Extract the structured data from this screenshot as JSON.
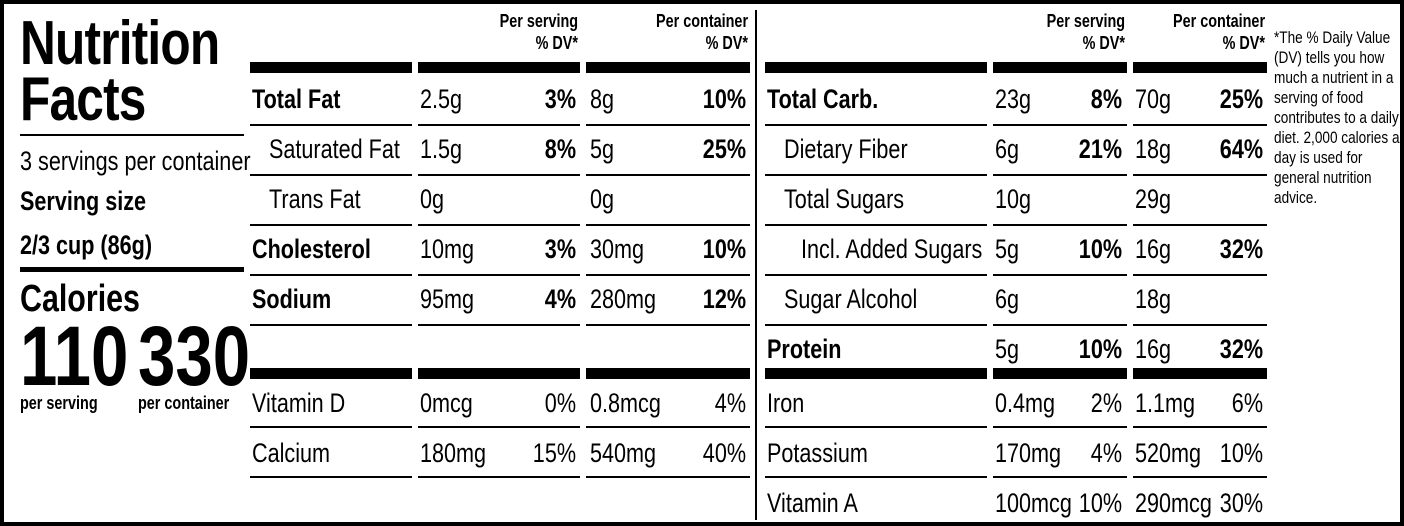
{
  "title": "Nutrition Facts",
  "servings_per_container": "3 servings per container",
  "serving_size_label": "Serving size",
  "serving_size": "2/3 cup (86g)",
  "calories_label": "Calories",
  "calories": [
    {
      "value": "110",
      "label": "per serving"
    },
    {
      "value": "330",
      "label": "per container"
    }
  ],
  "headers": {
    "per_serving": "Per serving",
    "per_container": "Per container",
    "dv": "% DV*"
  },
  "left_table": {
    "nutrients": [
      {
        "name": "Total Fat",
        "bold": true,
        "indent": 0,
        "serving_amount": "2.5g",
        "serving_dv": "3%",
        "container_amount": "8g",
        "container_dv": "10%"
      },
      {
        "name": "Saturated Fat",
        "bold": false,
        "indent": 1,
        "serving_amount": "1.5g",
        "serving_dv": "8%",
        "container_amount": "5g",
        "container_dv": "25%"
      },
      {
        "name": "Trans Fat",
        "bold": false,
        "indent": 1,
        "serving_amount": "0g",
        "container_amount": "0g"
      },
      {
        "name": "Cholesterol",
        "bold": true,
        "indent": 0,
        "serving_amount": "10mg",
        "serving_dv": "3%",
        "container_amount": "30mg",
        "container_dv": "10%"
      },
      {
        "name": "Sodium",
        "bold": true,
        "indent": 0,
        "serving_amount": "95mg",
        "serving_dv": "4%",
        "container_amount": "280mg",
        "container_dv": "12%"
      }
    ],
    "vitamins": [
      {
        "name": "Vitamin D",
        "serving_amount": "0mcg",
        "serving_dv": "0%",
        "container_amount": "0.8mcg",
        "container_dv": "4%"
      },
      {
        "name": "Calcium",
        "serving_amount": "180mg",
        "serving_dv": "15%",
        "container_amount": "540mg",
        "container_dv": "40%"
      }
    ]
  },
  "right_table": {
    "nutrients": [
      {
        "name": "Total Carb.",
        "bold": true,
        "indent": 0,
        "serving_amount": "23g",
        "serving_dv": "8%",
        "container_amount": "70g",
        "container_dv": "25%"
      },
      {
        "name": "Dietary Fiber",
        "bold": false,
        "indent": 1,
        "serving_amount": "6g",
        "serving_dv": "21%",
        "container_amount": "18g",
        "container_dv": "64%"
      },
      {
        "name": "Total Sugars",
        "bold": false,
        "indent": 1,
        "serving_amount": "10g",
        "container_amount": "29g"
      },
      {
        "name": "Incl. Added Sugars",
        "bold": false,
        "indent": 2,
        "serving_amount": "5g",
        "serving_dv": "10%",
        "container_amount": "16g",
        "container_dv": "32%"
      },
      {
        "name": "Sugar Alcohol",
        "bold": false,
        "indent": 1,
        "serving_amount": "6g",
        "container_amount": "18g"
      },
      {
        "name": "Protein",
        "bold": true,
        "indent": 0,
        "serving_amount": "5g",
        "serving_dv": "10%",
        "container_amount": "16g",
        "container_dv": "32%"
      }
    ],
    "vitamins": [
      {
        "name": "Iron",
        "serving_amount": "0.4mg",
        "serving_dv": "2%",
        "container_amount": "1.1mg",
        "container_dv": "6%"
      },
      {
        "name": "Potassium",
        "serving_amount": "170mg",
        "serving_dv": "4%",
        "container_amount": "520mg",
        "container_dv": "10%"
      },
      {
        "name": "Vitamin A",
        "serving_amount": "100mcg",
        "serving_dv": "10%",
        "container_amount": "290mcg",
        "container_dv": "30%"
      }
    ]
  },
  "footnote": "*The % Daily Value (DV) tells you how much a nutrient in a serving of food contributes to a daily diet. 2,000 calories a day is used for general nutrition advice."
}
